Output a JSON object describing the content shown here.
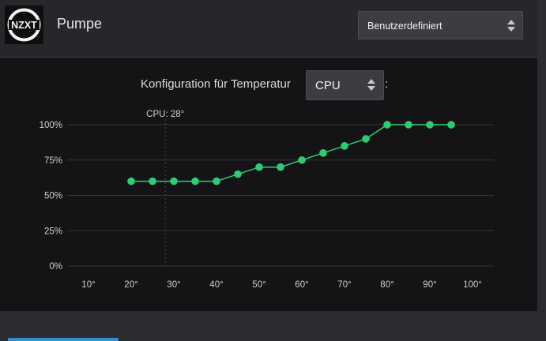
{
  "header": {
    "logo_text": "NZXT",
    "title": "Pumpe",
    "mode_select": {
      "value": "Benutzerdefiniert"
    }
  },
  "config": {
    "label": "Konfiguration für Temperatur",
    "sensor_select": {
      "value": "CPU"
    },
    "colon": ":"
  },
  "colors": {
    "curve": "#2ecc71",
    "grid": "#333438",
    "panel": "#141416",
    "header": "#26272b",
    "accent_tab": "#2f8fd6"
  },
  "chart_data": {
    "type": "line",
    "x": [
      20,
      25,
      30,
      35,
      40,
      45,
      50,
      55,
      60,
      65,
      70,
      75,
      80,
      85,
      90,
      95
    ],
    "series": [
      {
        "values": [
          60,
          60,
          60,
          60,
          60,
          65,
          70,
          70,
          75,
          80,
          85,
          90,
          100,
          100,
          100,
          100
        ]
      }
    ],
    "x_ticks": [
      10,
      20,
      30,
      40,
      50,
      60,
      70,
      80,
      90,
      100
    ],
    "x_tick_labels": [
      "10°",
      "20°",
      "30°",
      "40°",
      "50°",
      "60°",
      "70°",
      "80°",
      "90°",
      "100°"
    ],
    "y_ticks": [
      0,
      25,
      50,
      75,
      100
    ],
    "y_tick_labels": [
      "0%",
      "25%",
      "50%",
      "75%",
      "100%"
    ],
    "xlim": [
      5,
      105
    ],
    "ylim": [
      0,
      100
    ],
    "grid": true,
    "marker": {
      "x": 28,
      "label": "CPU: 28°"
    }
  }
}
